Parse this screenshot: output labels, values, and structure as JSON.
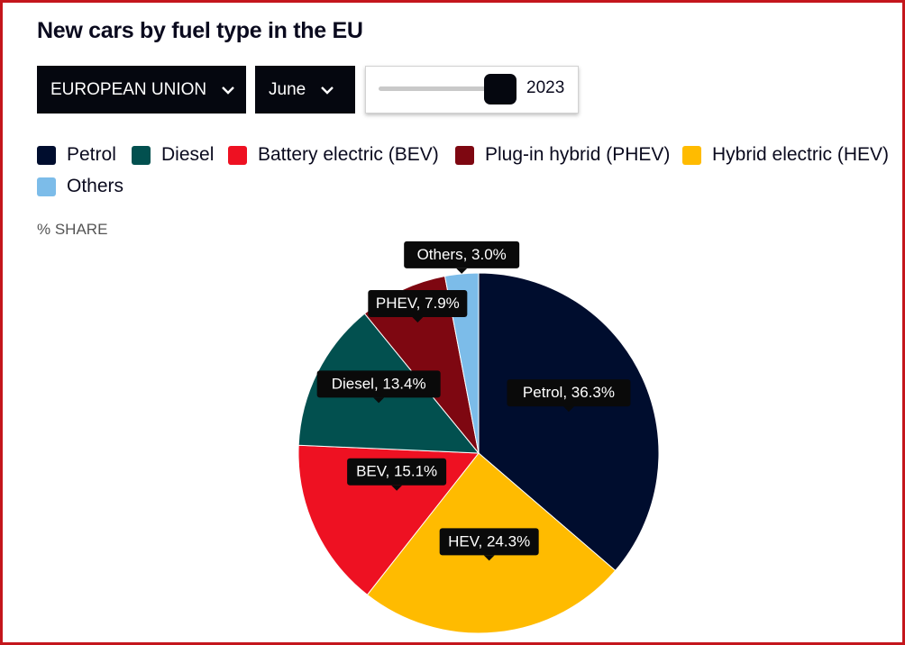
{
  "title": "New cars by fuel type in the EU",
  "controls": {
    "region": "EUROPEAN UNION",
    "month": "June",
    "year": "2023",
    "year_slider_level": 1.0
  },
  "legend": [
    {
      "label": "Petrol",
      "color": "#000d2e"
    },
    {
      "label": "Diesel",
      "color": "#02504f"
    },
    {
      "label": "Battery electric (BEV)",
      "color": "#ee1122"
    },
    {
      "label": "Plug-in hybrid (PHEV)",
      "color": "#7e0711"
    },
    {
      "label": "Hybrid electric (HEV)",
      "color": "#ffbb00"
    },
    {
      "label": "Others",
      "color": "#7cbce9"
    }
  ],
  "unit_label": "% SHARE",
  "chart_data": {
    "type": "pie",
    "title": "New cars by fuel type in the EU",
    "unit": "% SHARE",
    "slices": [
      {
        "name": "Petrol",
        "value": 36.3,
        "color": "#000d2e",
        "label": "Petrol, 36.3%"
      },
      {
        "name": "HEV",
        "value": 24.3,
        "color": "#ffbb00",
        "label": "HEV, 24.3%"
      },
      {
        "name": "BEV",
        "value": 15.1,
        "color": "#ee1122",
        "label": "BEV, 15.1%"
      },
      {
        "name": "Diesel",
        "value": 13.4,
        "color": "#02504f",
        "label": "Diesel, 13.4%"
      },
      {
        "name": "PHEV",
        "value": 7.9,
        "color": "#7e0711",
        "label": "PHEV, 7.9%"
      },
      {
        "name": "Others",
        "value": 3.0,
        "color": "#7cbce9",
        "label": "Others, 3.0%"
      }
    ]
  }
}
